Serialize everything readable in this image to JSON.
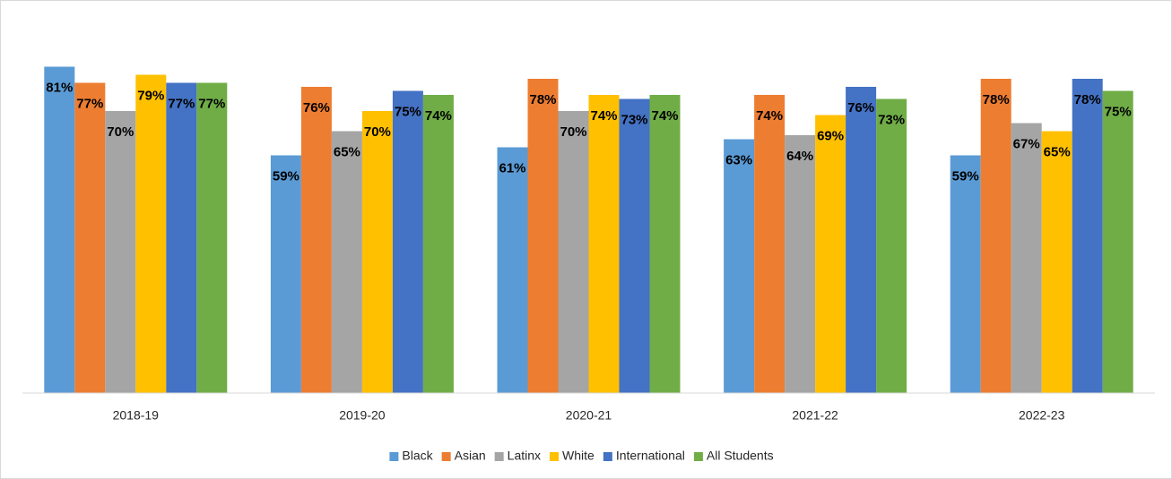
{
  "chart_data": {
    "type": "bar",
    "categories": [
      "2018-19",
      "2019-20",
      "2020-21",
      "2021-22",
      "2022-23"
    ],
    "series": [
      {
        "name": "Black",
        "color": "#5b9bd5",
        "values": [
          81,
          59,
          61,
          63,
          59
        ],
        "value_labels": [
          "81%",
          "59%",
          "61%",
          "63%",
          "59%"
        ]
      },
      {
        "name": "Asian",
        "color": "#ed7d31",
        "values": [
          77,
          76,
          78,
          74,
          78
        ],
        "value_labels": [
          "77%",
          "76%",
          "78%",
          "74%",
          "78%"
        ]
      },
      {
        "name": "Latinx",
        "color": "#a5a5a5",
        "values": [
          70,
          65,
          70,
          64,
          67
        ],
        "value_labels": [
          "70%",
          "65%",
          "70%",
          "64%",
          "67%"
        ]
      },
      {
        "name": "White",
        "color": "#ffc000",
        "values": [
          79,
          70,
          74,
          69,
          65
        ],
        "value_labels": [
          "79%",
          "70%",
          "74%",
          "69%",
          "65%"
        ]
      },
      {
        "name": "International",
        "color": "#4472c4",
        "values": [
          77,
          75,
          73,
          76,
          78
        ],
        "value_labels": [
          "77%",
          "75%",
          "73%",
          "76%",
          "78%"
        ]
      },
      {
        "name": "All Students",
        "color": "#70ad47",
        "values": [
          77,
          74,
          74,
          73,
          75
        ],
        "value_labels": [
          "77%",
          "74%",
          "74%",
          "73%",
          "75%"
        ]
      }
    ],
    "ylim": [
      0,
      90
    ],
    "legend": "bottom"
  }
}
